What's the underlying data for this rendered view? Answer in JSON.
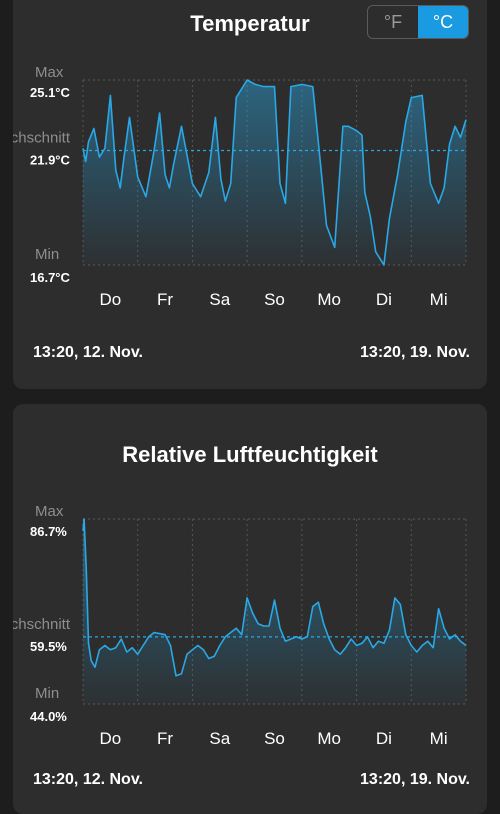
{
  "temperature": {
    "title": "Temperatur",
    "unit_toggle": {
      "fahrenheit": "°F",
      "celsius": "°C",
      "selected": "celsius"
    },
    "labels": {
      "max": "Max",
      "avg": "Durchschnitt",
      "min": "Min"
    },
    "range": {
      "start": "13:20,  12. Nov.",
      "end": "13:20,  19. Nov."
    }
  },
  "humidity": {
    "title": "Relative Luftfeuchtigkeit",
    "labels": {
      "max": "Max",
      "avg": "Durchschnitt",
      "min": "Min"
    },
    "range": {
      "start": "13:20,  12. Nov.",
      "end": "13:20,  19. Nov."
    }
  },
  "colors": {
    "line": "#2aa8e6",
    "accent": "#1a9ae0",
    "card": "#2d2d2d",
    "background": "#1d1d1d"
  },
  "chart_data": [
    {
      "id": "temperature",
      "type": "area",
      "title": "Temperatur",
      "y_unit": "°C",
      "max_label": "25.1°C",
      "avg_label": "21.9°C",
      "min_label": "16.7°C",
      "ylim": [
        16.7,
        25.1
      ],
      "average": 21.9,
      "x_unit": "days since start",
      "xlim": [
        0,
        7
      ],
      "categories": [
        "Do",
        "Fr",
        "Sa",
        "So",
        "Mo",
        "Di",
        "Mi"
      ],
      "x": [
        0,
        0.05,
        0.1,
        0.2,
        0.3,
        0.4,
        0.5,
        0.6,
        0.68,
        0.75,
        0.85,
        1.0,
        1.15,
        1.3,
        1.4,
        1.5,
        1.58,
        1.65,
        1.8,
        2.0,
        2.15,
        2.3,
        2.42,
        2.52,
        2.6,
        2.7,
        2.8,
        3.0,
        3.15,
        3.3,
        3.5,
        3.6,
        3.7,
        3.8,
        4.0,
        4.2,
        4.3,
        4.45,
        4.6,
        4.75,
        4.85,
        5.0,
        5.1,
        5.15,
        5.25,
        5.35,
        5.5,
        5.6,
        5.75,
        5.9,
        6.0,
        6.2,
        6.35,
        6.5,
        6.6,
        6.7,
        6.8,
        6.9,
        7.0
      ],
      "values": [
        22.0,
        21.4,
        22.3,
        22.9,
        21.6,
        22.0,
        24.4,
        21.0,
        20.2,
        21.6,
        23.4,
        20.7,
        19.8,
        21.9,
        23.6,
        20.8,
        20.2,
        21.2,
        23.0,
        20.4,
        19.8,
        20.9,
        23.4,
        20.6,
        19.6,
        20.4,
        24.3,
        25.1,
        24.9,
        24.8,
        24.8,
        20.4,
        19.5,
        24.8,
        24.9,
        24.8,
        22.3,
        18.5,
        17.5,
        23.0,
        23.0,
        22.8,
        22.6,
        20.0,
        18.9,
        17.3,
        16.7,
        18.8,
        20.8,
        23.2,
        24.3,
        24.4,
        20.4,
        19.5,
        20.2,
        22.2,
        23.0,
        22.5,
        23.3
      ]
    },
    {
      "id": "humidity",
      "type": "area",
      "title": "Relative Luftfeuchtigkeit",
      "y_unit": "%",
      "max_label": "86.7%",
      "avg_label": "59.5%",
      "min_label": "44.0%",
      "ylim": [
        44.0,
        86.7
      ],
      "average": 59.5,
      "x_unit": "days since start",
      "xlim": [
        0,
        7
      ],
      "categories": [
        "Do",
        "Fr",
        "Sa",
        "So",
        "Mo",
        "Di",
        "Mi"
      ],
      "x": [
        0,
        0.02,
        0.06,
        0.1,
        0.15,
        0.22,
        0.3,
        0.4,
        0.5,
        0.6,
        0.7,
        0.8,
        0.9,
        1.0,
        1.1,
        1.2,
        1.3,
        1.5,
        1.6,
        1.7,
        1.8,
        1.9,
        2.0,
        2.1,
        2.2,
        2.3,
        2.4,
        2.5,
        2.6,
        2.7,
        2.8,
        2.9,
        3.0,
        3.1,
        3.2,
        3.3,
        3.4,
        3.5,
        3.6,
        3.7,
        3.8,
        3.9,
        4.0,
        4.1,
        4.2,
        4.3,
        4.4,
        4.5,
        4.6,
        4.7,
        4.8,
        4.9,
        5.0,
        5.1,
        5.2,
        5.3,
        5.4,
        5.5,
        5.6,
        5.7,
        5.8,
        5.9,
        6.0,
        6.1,
        6.2,
        6.3,
        6.4,
        6.5,
        6.6,
        6.7,
        6.8,
        6.9,
        7.0
      ],
      "values": [
        84.0,
        86.7,
        75.0,
        58.0,
        54.0,
        52.5,
        56.5,
        57.5,
        56.5,
        57.0,
        59.0,
        56.0,
        57.0,
        55.5,
        57.5,
        59.5,
        60.5,
        60.0,
        57.5,
        50.5,
        51.0,
        55.5,
        56.5,
        57.5,
        56.5,
        54.5,
        55.0,
        57.5,
        59.5,
        60.5,
        61.5,
        60.0,
        68.5,
        65.0,
        62.5,
        62.0,
        62.0,
        68.0,
        61.5,
        58.5,
        59.0,
        59.5,
        59.0,
        59.5,
        66.5,
        67.5,
        62.5,
        59.0,
        56.5,
        55.5,
        57.0,
        59.0,
        57.5,
        58.0,
        59.5,
        57.0,
        58.5,
        58.0,
        61.0,
        68.5,
        67.0,
        60.0,
        57.5,
        56.0,
        57.5,
        58.5,
        57.0,
        66.0,
        61.5,
        59.0,
        60.0,
        58.5,
        57.5
      ]
    }
  ]
}
